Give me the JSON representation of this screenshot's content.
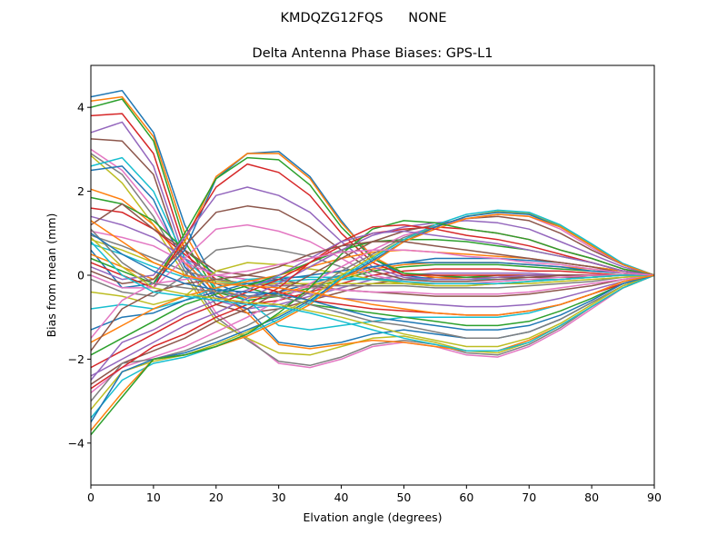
{
  "chart_data": {
    "type": "line",
    "suptitle": "KMDQZG12FQS      NONE",
    "title": "Delta Antenna Phase Biases: GPS-L1",
    "xlabel": "Elvation angle (degrees)",
    "ylabel": "Bias from mean (mm)",
    "xlim": [
      0,
      90
    ],
    "ylim": [
      -5,
      5
    ],
    "xticks": [
      0,
      10,
      20,
      30,
      40,
      50,
      60,
      70,
      80,
      90
    ],
    "yticks": [
      -4,
      -2,
      0,
      2,
      4
    ],
    "x": [
      0,
      5,
      10,
      15,
      20,
      25,
      30,
      35,
      40,
      45,
      50,
      55,
      60,
      65,
      70,
      75,
      80,
      85,
      90
    ],
    "grid": false,
    "legend": "none",
    "palette": [
      "#1f77b4",
      "#ff7f0e",
      "#2ca02c",
      "#d62728",
      "#9467bd",
      "#8c564b",
      "#e377c2",
      "#7f7f7f",
      "#bcbd22",
      "#17becf"
    ],
    "series": [
      {
        "values": [
          4.25,
          4.4,
          3.4,
          1.2,
          -0.2,
          -0.5,
          -0.4,
          -0.2,
          0.0,
          0.2,
          0.3,
          0.4,
          0.4,
          0.4,
          0.35,
          0.3,
          0.2,
          0.1,
          0
        ]
      },
      {
        "values": [
          4.15,
          4.25,
          3.3,
          1.0,
          -0.3,
          -0.55,
          -0.45,
          -0.25,
          -0.05,
          0.15,
          0.25,
          0.3,
          0.3,
          0.3,
          0.25,
          0.2,
          0.15,
          0.05,
          0
        ]
      },
      {
        "values": [
          4.0,
          4.2,
          3.2,
          0.8,
          -0.4,
          -0.6,
          -0.5,
          -0.3,
          -0.1,
          0.1,
          0.2,
          0.25,
          0.25,
          0.25,
          0.2,
          0.15,
          0.1,
          0.05,
          0
        ]
      },
      {
        "values": [
          3.8,
          3.85,
          2.9,
          0.6,
          -0.5,
          -0.7,
          -0.6,
          -0.4,
          -0.2,
          0.0,
          0.1,
          0.15,
          0.15,
          0.15,
          0.1,
          0.1,
          0.05,
          0.0,
          0
        ]
      },
      {
        "values": [
          3.4,
          3.65,
          2.6,
          0.4,
          -0.6,
          -0.8,
          -0.7,
          -0.5,
          -0.3,
          -0.1,
          0.0,
          0.05,
          0.05,
          0.05,
          0.05,
          0.0,
          0.0,
          0.0,
          0
        ]
      },
      {
        "values": [
          3.25,
          3.2,
          2.4,
          0.2,
          -0.7,
          -0.9,
          -0.8,
          -0.6,
          -0.4,
          -0.2,
          -0.1,
          -0.05,
          -0.05,
          -0.05,
          -0.05,
          -0.05,
          -0.05,
          0.0,
          0
        ]
      },
      {
        "values": [
          3.0,
          2.5,
          1.6,
          0.3,
          -0.9,
          -1.5,
          -2.1,
          -2.2,
          -2.0,
          -1.7,
          -1.6,
          -1.7,
          -1.9,
          -1.95,
          -1.7,
          -1.3,
          -0.8,
          -0.3,
          0
        ]
      },
      {
        "values": [
          2.9,
          2.4,
          1.4,
          0.1,
          -1.0,
          -1.55,
          -2.05,
          -2.15,
          -1.95,
          -1.65,
          -1.55,
          -1.65,
          -1.85,
          -1.9,
          -1.65,
          -1.25,
          -0.75,
          -0.3,
          0
        ]
      },
      {
        "values": [
          2.85,
          2.2,
          1.2,
          0.0,
          -1.1,
          -1.5,
          -1.85,
          -1.9,
          -1.7,
          -1.5,
          -1.45,
          -1.6,
          -1.8,
          -1.85,
          -1.6,
          -1.2,
          -0.75,
          -0.3,
          0
        ]
      },
      {
        "values": [
          2.6,
          2.8,
          2.0,
          0.4,
          -0.3,
          -0.6,
          -1.2,
          -1.3,
          -1.2,
          -1.1,
          -1.0,
          -1.0,
          -1.0,
          -1.0,
          -0.9,
          -0.7,
          -0.45,
          -0.2,
          0
        ]
      },
      {
        "values": [
          2.5,
          2.6,
          1.8,
          0.2,
          -0.5,
          -0.8,
          -1.6,
          -1.7,
          -1.6,
          -1.4,
          -1.3,
          -1.4,
          -1.5,
          -1.5,
          -1.35,
          -1.05,
          -0.65,
          -0.25,
          0
        ]
      },
      {
        "values": [
          2.05,
          1.8,
          1.2,
          0.3,
          -0.4,
          -0.9,
          -1.65,
          -1.75,
          -1.65,
          -1.55,
          -1.6,
          -1.7,
          -1.8,
          -1.8,
          -1.55,
          -1.2,
          -0.75,
          -0.3,
          0
        ]
      },
      {
        "values": [
          1.85,
          1.7,
          1.3,
          0.6,
          0.0,
          -0.3,
          -0.5,
          -0.7,
          -0.8,
          -0.9,
          -1.0,
          -1.1,
          -1.2,
          -1.2,
          -1.1,
          -0.85,
          -0.55,
          -0.2,
          0
        ]
      },
      {
        "values": [
          1.6,
          1.5,
          1.1,
          0.5,
          -0.1,
          -0.2,
          -0.4,
          -0.6,
          -0.7,
          -0.8,
          -0.85,
          -0.9,
          -0.95,
          -0.95,
          -0.85,
          -0.7,
          -0.45,
          -0.2,
          0
        ]
      },
      {
        "values": [
          1.4,
          1.2,
          0.9,
          0.4,
          0.0,
          -0.1,
          -0.3,
          -0.45,
          -0.55,
          -0.6,
          -0.65,
          -0.7,
          -0.75,
          -0.75,
          -0.7,
          -0.55,
          -0.35,
          -0.15,
          0
        ]
      },
      {
        "values": [
          1.2,
          1.7,
          1.1,
          0.6,
          0.1,
          0.0,
          -0.1,
          -0.25,
          -0.35,
          -0.4,
          -0.45,
          -0.5,
          -0.5,
          -0.5,
          -0.45,
          -0.35,
          -0.25,
          -0.1,
          0
        ]
      },
      {
        "values": [
          1.05,
          0.9,
          0.7,
          0.3,
          0.0,
          -0.1,
          -0.2,
          -0.3,
          -0.35,
          -0.4,
          -0.4,
          -0.45,
          -0.45,
          -0.45,
          -0.4,
          -0.3,
          -0.2,
          -0.1,
          0
        ]
      },
      {
        "values": [
          0.95,
          0.7,
          0.4,
          0.1,
          -0.1,
          -0.2,
          -0.25,
          -0.25,
          -0.25,
          -0.25,
          -0.25,
          -0.3,
          -0.3,
          -0.3,
          -0.25,
          -0.2,
          -0.15,
          -0.05,
          0
        ]
      },
      {
        "values": [
          0.85,
          0.6,
          0.3,
          0.0,
          -0.15,
          -0.2,
          -0.2,
          -0.2,
          -0.2,
          -0.2,
          -0.2,
          -0.2,
          -0.2,
          -0.2,
          -0.2,
          -0.15,
          -0.1,
          -0.05,
          0
        ]
      },
      {
        "values": [
          0.75,
          0.5,
          0.2,
          -0.05,
          -0.2,
          -0.2,
          -0.15,
          -0.1,
          -0.1,
          -0.1,
          -0.1,
          -0.1,
          -0.1,
          -0.1,
          -0.1,
          -0.1,
          -0.05,
          0.0,
          0
        ]
      },
      {
        "values": [
          0.6,
          -0.3,
          -0.2,
          0.6,
          2.3,
          2.9,
          2.95,
          2.35,
          1.3,
          0.4,
          0.0,
          -0.1,
          -0.1,
          -0.05,
          0.0,
          0.0,
          0.0,
          0.0,
          0
        ]
      },
      {
        "values": [
          0.5,
          0.2,
          -0.1,
          0.8,
          2.35,
          2.9,
          2.9,
          2.3,
          1.25,
          0.45,
          0.05,
          -0.05,
          -0.1,
          -0.05,
          0.0,
          0.0,
          0.0,
          0.0,
          0
        ]
      },
      {
        "values": [
          0.4,
          0.1,
          -0.2,
          1.0,
          2.3,
          2.8,
          2.75,
          2.15,
          1.15,
          0.4,
          0.05,
          0.0,
          -0.05,
          0.0,
          0.0,
          0.0,
          0.0,
          0.0,
          0
        ]
      },
      {
        "values": [
          0.3,
          0.0,
          -0.3,
          0.9,
          2.1,
          2.65,
          2.45,
          1.9,
          1.0,
          0.3,
          0.0,
          0.0,
          0.0,
          0.0,
          0.0,
          0.0,
          0.0,
          0.0,
          0
        ]
      },
      {
        "values": [
          0.2,
          -0.1,
          0.0,
          0.9,
          1.9,
          2.1,
          1.9,
          1.5,
          0.8,
          0.2,
          -0.05,
          -0.1,
          -0.1,
          -0.05,
          0.0,
          0.0,
          0.0,
          0.0,
          0
        ]
      },
      {
        "values": [
          0.1,
          -0.2,
          -0.1,
          0.7,
          1.5,
          1.65,
          1.55,
          1.15,
          0.6,
          0.1,
          -0.1,
          -0.15,
          -0.15,
          -0.1,
          -0.05,
          0.0,
          0.0,
          0.0,
          0
        ]
      },
      {
        "values": [
          0.0,
          -0.3,
          -0.3,
          0.4,
          1.1,
          1.2,
          1.05,
          0.8,
          0.4,
          0.0,
          -0.15,
          -0.2,
          -0.2,
          -0.15,
          -0.1,
          -0.05,
          0.0,
          0.0,
          0
        ]
      },
      {
        "values": [
          -0.1,
          -0.4,
          -0.5,
          0.0,
          0.6,
          0.7,
          0.6,
          0.45,
          0.2,
          -0.05,
          -0.2,
          -0.25,
          -0.25,
          -0.2,
          -0.15,
          -0.1,
          -0.05,
          0.0,
          0
        ]
      },
      {
        "values": [
          -0.4,
          -0.5,
          -0.7,
          -0.5,
          0.1,
          0.3,
          0.25,
          0.15,
          0.05,
          -0.1,
          -0.2,
          -0.25,
          -0.25,
          -0.2,
          -0.15,
          -0.1,
          -0.05,
          0.0,
          0
        ]
      },
      {
        "values": [
          -0.8,
          -0.7,
          -0.8,
          -0.6,
          -0.3,
          -0.1,
          -0.05,
          -0.05,
          -0.05,
          -0.1,
          -0.15,
          -0.2,
          -0.2,
          -0.2,
          -0.15,
          -0.1,
          -0.05,
          0.0,
          0
        ]
      },
      {
        "values": [
          -1.3,
          -1.0,
          -0.9,
          -0.6,
          -0.4,
          -0.2,
          -0.1,
          0.0,
          0.1,
          0.2,
          0.3,
          0.3,
          0.3,
          0.3,
          0.25,
          0.2,
          0.1,
          0.05,
          0
        ]
      },
      {
        "values": [
          -1.6,
          -1.2,
          -0.8,
          -0.5,
          -0.3,
          -0.15,
          0.0,
          0.2,
          0.4,
          0.55,
          0.6,
          0.55,
          0.5,
          0.45,
          0.4,
          0.3,
          0.2,
          0.1,
          0
        ]
      },
      {
        "values": [
          -1.9,
          -1.5,
          -1.1,
          -0.7,
          -0.45,
          -0.25,
          0.0,
          0.3,
          0.6,
          0.8,
          0.85,
          0.85,
          0.8,
          0.7,
          0.6,
          0.45,
          0.3,
          0.1,
          0
        ]
      },
      {
        "values": [
          -2.2,
          -1.8,
          -1.4,
          -1.0,
          -0.7,
          -0.4,
          -0.1,
          0.3,
          0.7,
          1.0,
          1.1,
          1.15,
          1.1,
          1.0,
          0.85,
          0.6,
          0.4,
          0.15,
          0
        ]
      },
      {
        "values": [
          -2.4,
          -2.0,
          -1.6,
          -1.2,
          -0.9,
          -0.55,
          -0.2,
          0.2,
          0.6,
          0.95,
          1.15,
          1.25,
          1.3,
          1.25,
          1.1,
          0.8,
          0.5,
          0.2,
          0
        ]
      },
      {
        "values": [
          -2.6,
          -2.1,
          -1.8,
          -1.5,
          -1.1,
          -0.8,
          -0.4,
          0.0,
          0.4,
          0.8,
          1.05,
          1.2,
          1.35,
          1.4,
          1.3,
          1.0,
          0.6,
          0.25,
          0
        ]
      },
      {
        "values": [
          -2.8,
          -2.2,
          -1.95,
          -1.7,
          -1.35,
          -1.0,
          -0.6,
          -0.2,
          0.2,
          0.6,
          0.95,
          1.15,
          1.35,
          1.45,
          1.4,
          1.1,
          0.65,
          0.25,
          0
        ]
      },
      {
        "values": [
          -3.0,
          -2.1,
          -2.0,
          -1.8,
          -1.5,
          -1.2,
          -0.8,
          -0.4,
          0.1,
          0.5,
          0.9,
          1.15,
          1.4,
          1.5,
          1.45,
          1.15,
          0.7,
          0.25,
          0
        ]
      },
      {
        "values": [
          -3.2,
          -2.3,
          -2.05,
          -1.9,
          -1.65,
          -1.35,
          -0.95,
          -0.55,
          0.0,
          0.45,
          0.85,
          1.15,
          1.4,
          1.52,
          1.47,
          1.18,
          0.72,
          0.27,
          0
        ]
      },
      {
        "values": [
          -3.4,
          -2.5,
          -2.1,
          -1.95,
          -1.7,
          -1.4,
          -1.05,
          -0.65,
          -0.05,
          0.4,
          0.85,
          1.2,
          1.45,
          1.55,
          1.5,
          1.2,
          0.75,
          0.28,
          0
        ]
      },
      {
        "values": [
          -3.5,
          -2.3,
          -2.0,
          -1.85,
          -1.6,
          -1.3,
          -1.0,
          -0.6,
          -0.1,
          0.35,
          0.8,
          1.15,
          1.4,
          1.5,
          1.45,
          1.15,
          0.7,
          0.25,
          0
        ]
      },
      {
        "values": [
          -3.7,
          -2.8,
          -2.0,
          -1.9,
          -1.7,
          -1.45,
          -1.1,
          -0.7,
          -0.1,
          0.3,
          0.8,
          1.1,
          1.35,
          1.45,
          1.4,
          1.15,
          0.7,
          0.25,
          0
        ]
      },
      {
        "values": [
          -3.8,
          -2.9,
          -2.0,
          -1.9,
          -1.7,
          -1.4,
          -0.9,
          -0.3,
          0.5,
          1.1,
          1.3,
          1.25,
          1.1,
          1.0,
          0.85,
          0.6,
          0.4,
          0.15,
          0
        ]
      },
      {
        "values": [
          -2.7,
          -2.2,
          -1.7,
          -1.4,
          -1.0,
          -0.7,
          -0.3,
          0.3,
          0.8,
          1.15,
          1.2,
          1.1,
          0.95,
          0.85,
          0.7,
          0.5,
          0.3,
          0.1,
          0
        ]
      },
      {
        "values": [
          -2.5,
          -1.6,
          -1.3,
          -0.9,
          -0.6,
          -0.35,
          0.0,
          0.4,
          0.8,
          1.0,
          1.05,
          0.95,
          0.85,
          0.75,
          0.6,
          0.45,
          0.3,
          0.1,
          0
        ]
      },
      {
        "values": [
          -1.8,
          -0.8,
          -0.4,
          -0.2,
          -0.1,
          0.0,
          0.2,
          0.5,
          0.7,
          0.8,
          0.8,
          0.7,
          0.6,
          0.5,
          0.4,
          0.3,
          0.2,
          0.05,
          0
        ]
      },
      {
        "values": [
          -1.5,
          -0.6,
          -0.2,
          -0.1,
          0.0,
          0.1,
          0.25,
          0.4,
          0.55,
          0.6,
          0.6,
          0.55,
          0.45,
          0.4,
          0.3,
          0.25,
          0.15,
          0.05,
          0
        ]
      },
      {
        "values": [
          1.1,
          0.3,
          -0.2,
          -0.3,
          -0.4,
          -0.5,
          -0.5,
          -0.7,
          -0.9,
          -1.1,
          -1.2,
          -1.35,
          -1.5,
          -1.5,
          -1.35,
          -1.05,
          -0.65,
          -0.25,
          0
        ]
      },
      {
        "values": [
          0.9,
          0.2,
          -0.3,
          -0.45,
          -0.55,
          -0.65,
          -0.7,
          -0.85,
          -1.0,
          -1.2,
          -1.4,
          -1.55,
          -1.7,
          -1.7,
          -1.5,
          -1.15,
          -0.7,
          -0.25,
          0
        ]
      },
      {
        "values": [
          0.8,
          0.0,
          -0.4,
          -0.5,
          -0.6,
          -0.7,
          -0.75,
          -0.9,
          -1.1,
          -1.3,
          -1.5,
          -1.65,
          -1.8,
          -1.8,
          -1.6,
          -1.2,
          -0.75,
          -0.3,
          0
        ]
      },
      {
        "values": [
          1.0,
          0.5,
          0.1,
          -0.2,
          -0.35,
          -0.4,
          -0.45,
          -0.6,
          -0.8,
          -1.0,
          -1.1,
          -1.2,
          -1.3,
          -1.3,
          -1.2,
          -0.95,
          -0.6,
          -0.2,
          0
        ]
      },
      {
        "values": [
          1.3,
          0.8,
          0.3,
          0.0,
          -0.2,
          -0.25,
          -0.3,
          -0.4,
          -0.55,
          -0.7,
          -0.8,
          -0.9,
          -0.95,
          -0.95,
          -0.85,
          -0.7,
          -0.45,
          -0.15,
          0
        ]
      }
    ]
  }
}
